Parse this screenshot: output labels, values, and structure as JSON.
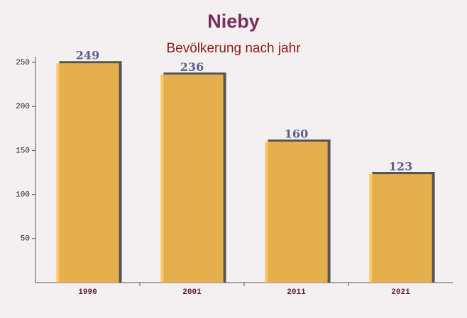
{
  "chart_data": {
    "type": "bar",
    "title": "Nieby",
    "subtitle": "Bevölkerung nach jahr",
    "categories": [
      "1990",
      "2001",
      "2011",
      "2021"
    ],
    "values": [
      249,
      236,
      160,
      123
    ],
    "color": "#ffc04d",
    "ylim": [
      0,
      250
    ],
    "yticks": [
      50,
      100,
      150,
      200,
      250
    ]
  }
}
